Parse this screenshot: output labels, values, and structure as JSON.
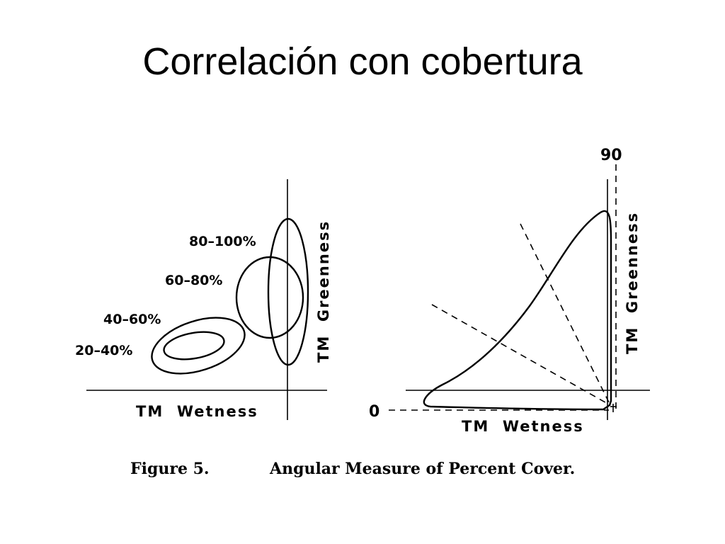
{
  "slide": {
    "title": "Correlación con cobertura"
  },
  "left_plot": {
    "classes": [
      "80–100%",
      "60–80%",
      "40–60%",
      "20–40%"
    ],
    "x_axis_label": "TM  Wetness",
    "y_axis_label": "TM  Greenness"
  },
  "right_plot": {
    "angle_min_label": "0",
    "angle_max_label": "90",
    "x_axis_label": "TM  Wetness",
    "y_axis_label": "TM  Greenness"
  },
  "caption": {
    "figure_label": "Figure 5.",
    "text": "Angular Measure of Percent Cover."
  }
}
